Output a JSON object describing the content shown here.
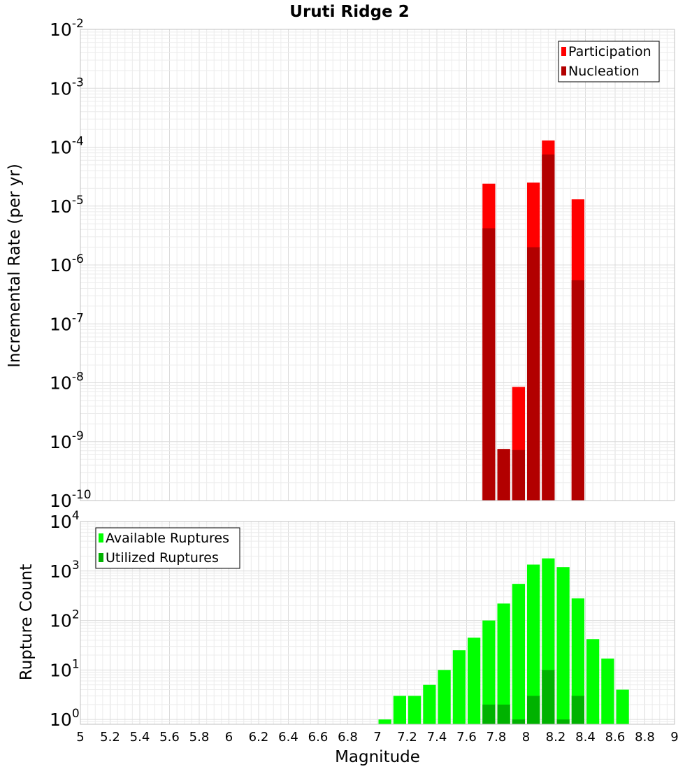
{
  "title": "Uruti Ridge 2",
  "xlabel": "Magnitude",
  "x_ticks": [
    "5",
    "5.2",
    "5.4",
    "5.6",
    "5.8",
    "6",
    "6.2",
    "6.4",
    "6.6",
    "6.8",
    "7",
    "7.2",
    "7.4",
    "7.6",
    "7.8",
    "8",
    "8.2",
    "8.4",
    "8.6",
    "8.8",
    "9"
  ],
  "chart_data": [
    {
      "type": "bar",
      "ylabel": "Incremental Rate (per yr)",
      "y_scale": "log",
      "xlim": [
        5,
        9
      ],
      "ylim": [
        1e-10,
        0.01
      ],
      "y_tick_exponents": [
        "-10",
        "-9",
        "-8",
        "-7",
        "-6",
        "-5",
        "-4",
        "-3",
        "-2"
      ],
      "y_tick_base": "10",
      "grid": true,
      "legend_placement": "top-right",
      "bar_width": 0.1,
      "series": [
        {
          "name": "Participation",
          "color": "#ff0000",
          "x": [
            7.75,
            7.85,
            7.95,
            8.05,
            8.15,
            8.35
          ],
          "values": [
            2.4e-05,
            7.5e-10,
            8.5e-09,
            2.5e-05,
            0.00013,
            1.3e-05
          ]
        },
        {
          "name": "Nucleation",
          "color": "#b20000",
          "x": [
            7.75,
            7.85,
            7.95,
            8.05,
            8.15,
            8.35
          ],
          "values": [
            4.2e-06,
            7.5e-10,
            7.2e-10,
            2e-06,
            7.5e-05,
            5.5e-07
          ]
        }
      ]
    },
    {
      "type": "bar",
      "ylabel": "Rupture Count",
      "y_scale": "log",
      "xlim": [
        5,
        9
      ],
      "ylim": [
        0.8,
        10000.0
      ],
      "y_tick_exponents": [
        "0",
        "1",
        "2",
        "3",
        "4"
      ],
      "y_tick_base": "10",
      "grid": true,
      "legend_placement": "top-left",
      "bar_width": 0.1,
      "series": [
        {
          "name": "Available Ruptures",
          "color": "#00ff00",
          "x": [
            7.05,
            7.15,
            7.25,
            7.35,
            7.45,
            7.55,
            7.65,
            7.75,
            7.85,
            7.95,
            8.05,
            8.15,
            8.25,
            8.35,
            8.45,
            8.55,
            8.65
          ],
          "values": [
            1,
            3,
            3,
            5,
            10,
            25,
            45,
            100,
            220,
            550,
            1350,
            1800,
            1200,
            280,
            42,
            17,
            4
          ]
        },
        {
          "name": "Utilized Ruptures",
          "color": "#00b200",
          "x": [
            7.75,
            7.85,
            7.95,
            8.05,
            8.15,
            8.25,
            8.35
          ],
          "values": [
            2,
            2,
            1,
            3,
            10,
            1,
            3
          ]
        }
      ]
    }
  ]
}
